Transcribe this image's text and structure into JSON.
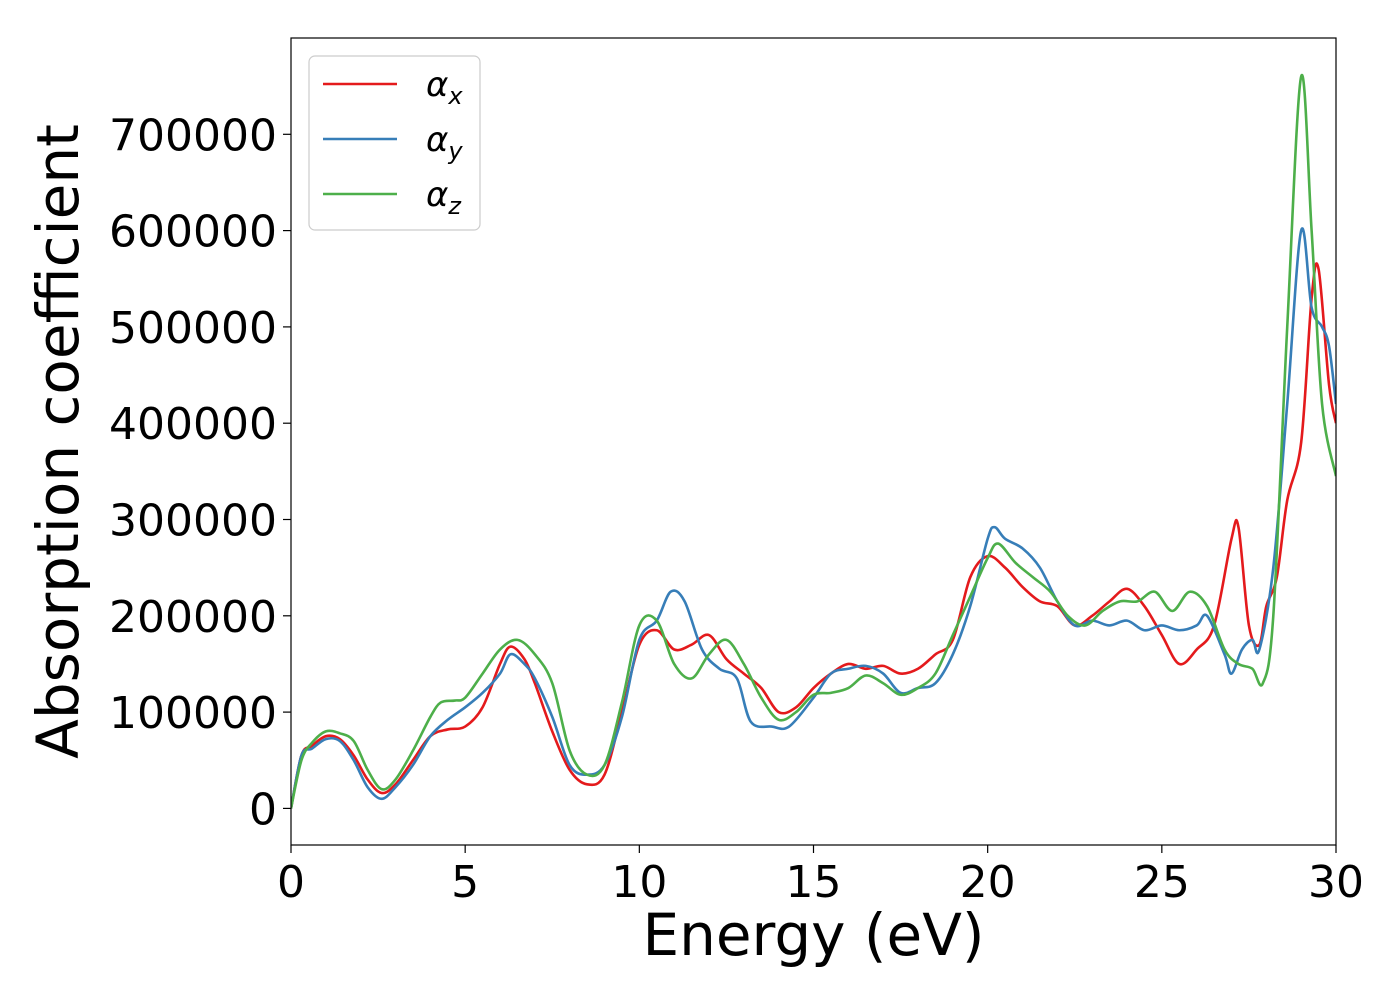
{
  "chart_data": {
    "type": "line",
    "title": "",
    "xlabel": "Energy (eV)",
    "ylabel": "Absorption coefficient",
    "xlim": [
      0,
      30
    ],
    "ylim": [
      -38000,
      800000
    ],
    "xticks": [
      0,
      5,
      10,
      15,
      20,
      25,
      30
    ],
    "yticks": [
      0,
      100000,
      200000,
      300000,
      400000,
      500000,
      600000,
      700000
    ],
    "grid": false,
    "legend": "top-left",
    "series": [
      {
        "name": "α",
        "sub": "x",
        "color": "#e41a1c",
        "x": [
          0,
          0.3,
          0.6,
          1.0,
          1.4,
          1.8,
          2.2,
          2.6,
          3.0,
          3.5,
          4.0,
          4.5,
          5.0,
          5.5,
          6.0,
          6.3,
          6.7,
          7.0,
          7.5,
          8.0,
          8.5,
          9.0,
          9.5,
          10.0,
          10.5,
          11.0,
          11.5,
          12.0,
          12.5,
          13.0,
          13.5,
          14.0,
          14.5,
          15.0,
          15.5,
          16.0,
          16.5,
          17.0,
          17.5,
          18.0,
          18.5,
          19.0,
          19.5,
          20.0,
          20.5,
          21.0,
          21.5,
          22.0,
          22.5,
          23.0,
          23.5,
          24.0,
          24.5,
          25.0,
          25.5,
          26.0,
          26.5,
          27.0,
          27.2,
          27.5,
          27.8,
          28.0,
          28.3,
          28.6,
          29.0,
          29.3,
          29.5,
          29.8,
          30.0
        ],
        "y": [
          0,
          55000,
          65000,
          75000,
          72000,
          55000,
          30000,
          16000,
          25000,
          50000,
          75000,
          82000,
          85000,
          105000,
          150000,
          168000,
          155000,
          130000,
          80000,
          40000,
          25000,
          35000,
          100000,
          170000,
          185000,
          165000,
          170000,
          180000,
          155000,
          140000,
          125000,
          100000,
          105000,
          125000,
          140000,
          150000,
          145000,
          148000,
          140000,
          145000,
          160000,
          175000,
          240000,
          262000,
          250000,
          230000,
          215000,
          210000,
          190000,
          200000,
          215000,
          228000,
          210000,
          180000,
          150000,
          165000,
          190000,
          280000,
          292000,
          190000,
          170000,
          210000,
          240000,
          320000,
          380000,
          530000,
          560000,
          440000,
          400000
        ]
      },
      {
        "name": "α",
        "sub": "y",
        "color": "#377eb8",
        "x": [
          0,
          0.3,
          0.6,
          1.0,
          1.4,
          1.8,
          2.2,
          2.6,
          3.0,
          3.5,
          4.0,
          4.5,
          5.0,
          5.5,
          6.0,
          6.3,
          6.7,
          7.0,
          7.5,
          8.0,
          8.5,
          9.0,
          9.5,
          10.0,
          10.5,
          10.9,
          11.3,
          11.8,
          12.3,
          12.8,
          13.2,
          13.8,
          14.3,
          15.0,
          15.5,
          16.0,
          16.5,
          17.0,
          17.5,
          18.0,
          18.5,
          19.0,
          19.5,
          20.0,
          20.2,
          20.5,
          21.0,
          21.5,
          22.0,
          22.5,
          23.0,
          23.5,
          24.0,
          24.5,
          25.0,
          25.5,
          26.0,
          26.3,
          26.8,
          27.0,
          27.3,
          27.6,
          27.8,
          28.2,
          28.6,
          29.0,
          29.3,
          29.6,
          29.8,
          30.0
        ],
        "y": [
          0,
          55000,
          62000,
          72000,
          70000,
          50000,
          22000,
          10000,
          22000,
          45000,
          75000,
          92000,
          105000,
          120000,
          140000,
          160000,
          150000,
          135000,
          95000,
          45000,
          35000,
          45000,
          95000,
          175000,
          195000,
          225000,
          215000,
          165000,
          145000,
          135000,
          90000,
          85000,
          85000,
          115000,
          140000,
          145000,
          148000,
          140000,
          120000,
          125000,
          130000,
          160000,
          210000,
          280000,
          292000,
          280000,
          270000,
          250000,
          215000,
          190000,
          195000,
          190000,
          195000,
          185000,
          190000,
          185000,
          190000,
          200000,
          160000,
          140000,
          165000,
          175000,
          165000,
          250000,
          420000,
          600000,
          520000,
          500000,
          480000,
          420000
        ]
      },
      {
        "name": "α",
        "sub": "z",
        "color": "#4daf4a",
        "x": [
          0,
          0.3,
          0.6,
          1.0,
          1.4,
          1.8,
          2.2,
          2.6,
          3.0,
          3.5,
          4.0,
          4.3,
          4.7,
          5.0,
          5.5,
          6.0,
          6.5,
          7.0,
          7.5,
          8.0,
          8.5,
          9.0,
          9.5,
          10.0,
          10.5,
          11.0,
          11.5,
          12.0,
          12.5,
          13.0,
          13.5,
          14.0,
          14.5,
          15.0,
          15.5,
          16.0,
          16.5,
          17.0,
          17.5,
          18.0,
          18.5,
          19.0,
          19.5,
          20.0,
          20.3,
          20.8,
          21.3,
          21.8,
          22.3,
          22.8,
          23.3,
          23.8,
          24.3,
          24.8,
          25.3,
          25.8,
          26.3,
          26.8,
          27.2,
          27.6,
          27.9,
          28.2,
          28.6,
          29.0,
          29.3,
          29.6,
          30.0
        ],
        "y": [
          0,
          50000,
          68000,
          80000,
          78000,
          70000,
          40000,
          20000,
          30000,
          60000,
          95000,
          110000,
          112000,
          115000,
          140000,
          165000,
          175000,
          160000,
          130000,
          60000,
          35000,
          45000,
          110000,
          190000,
          195000,
          150000,
          135000,
          160000,
          175000,
          150000,
          115000,
          92000,
          100000,
          118000,
          120000,
          125000,
          138000,
          130000,
          118000,
          125000,
          140000,
          180000,
          220000,
          260000,
          275000,
          255000,
          240000,
          225000,
          200000,
          190000,
          205000,
          215000,
          215000,
          225000,
          205000,
          225000,
          210000,
          165000,
          150000,
          145000,
          130000,
          200000,
          500000,
          760000,
          600000,
          420000,
          345000
        ]
      }
    ]
  }
}
